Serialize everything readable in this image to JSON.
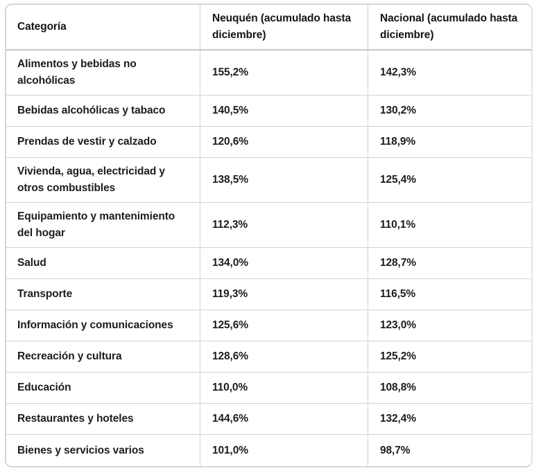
{
  "table": {
    "headers": {
      "category": "Categoría",
      "neuquen": "Neuquén (acumulado hasta diciembre)",
      "nacional": "Nacional (acumulado hasta diciembre)"
    },
    "rows": [
      {
        "category": "Alimentos y bebidas no alcohólicas",
        "neuquen": "155,2%",
        "nacional": "142,3%"
      },
      {
        "category": "Bebidas alcohólicas y tabaco",
        "neuquen": "140,5%",
        "nacional": "130,2%"
      },
      {
        "category": "Prendas de vestir y calzado",
        "neuquen": "120,6%",
        "nacional": "118,9%"
      },
      {
        "category": "Vivienda, agua, electricidad y otros combustibles",
        "neuquen": "138,5%",
        "nacional": "125,4%"
      },
      {
        "category": "Equipamiento y mantenimiento del hogar",
        "neuquen": "112,3%",
        "nacional": "110,1%"
      },
      {
        "category": "Salud",
        "neuquen": "134,0%",
        "nacional": "128,7%"
      },
      {
        "category": "Transporte",
        "neuquen": "119,3%",
        "nacional": "116,5%"
      },
      {
        "category": "Información y comunicaciones",
        "neuquen": "125,6%",
        "nacional": "123,0%"
      },
      {
        "category": "Recreación y cultura",
        "neuquen": "128,6%",
        "nacional": "125,2%"
      },
      {
        "category": "Educación",
        "neuquen": "110,0%",
        "nacional": "108,8%"
      },
      {
        "category": "Restaurantes y hoteles",
        "neuquen": "144,6%",
        "nacional": "132,4%"
      },
      {
        "category": "Bienes y servicios varios",
        "neuquen": "101,0%",
        "nacional": "98,7%"
      }
    ]
  },
  "chart_data": {
    "type": "table",
    "title": "",
    "columns": [
      "Categoría",
      "Neuquén (acumulado hasta diciembre)",
      "Nacional (acumulado hasta diciembre)"
    ],
    "categories": [
      "Alimentos y bebidas no alcohólicas",
      "Bebidas alcohólicas y tabaco",
      "Prendas de vestir y calzado",
      "Vivienda, agua, electricidad y otros combustibles",
      "Equipamiento y mantenimiento del hogar",
      "Salud",
      "Transporte",
      "Información y comunicaciones",
      "Recreación y cultura",
      "Educación",
      "Restaurantes y hoteles",
      "Bienes y servicios varios"
    ],
    "series": [
      {
        "name": "Neuquén (acumulado hasta diciembre)",
        "values": [
          155.2,
          140.5,
          120.6,
          138.5,
          112.3,
          134.0,
          119.3,
          125.6,
          128.6,
          110.0,
          144.6,
          101.0
        ]
      },
      {
        "name": "Nacional (acumulado hasta diciembre)",
        "values": [
          142.3,
          130.2,
          118.9,
          125.4,
          110.1,
          128.7,
          116.5,
          123.0,
          125.2,
          108.8,
          132.4,
          98.7
        ]
      }
    ],
    "value_unit": "%"
  },
  "colors": {
    "background": "#ffffff",
    "border_outer": "#d6d6d6",
    "border_inner": "#d2d2d2",
    "header_separator": "#c6c6c6",
    "text": "#1c1c1c"
  }
}
